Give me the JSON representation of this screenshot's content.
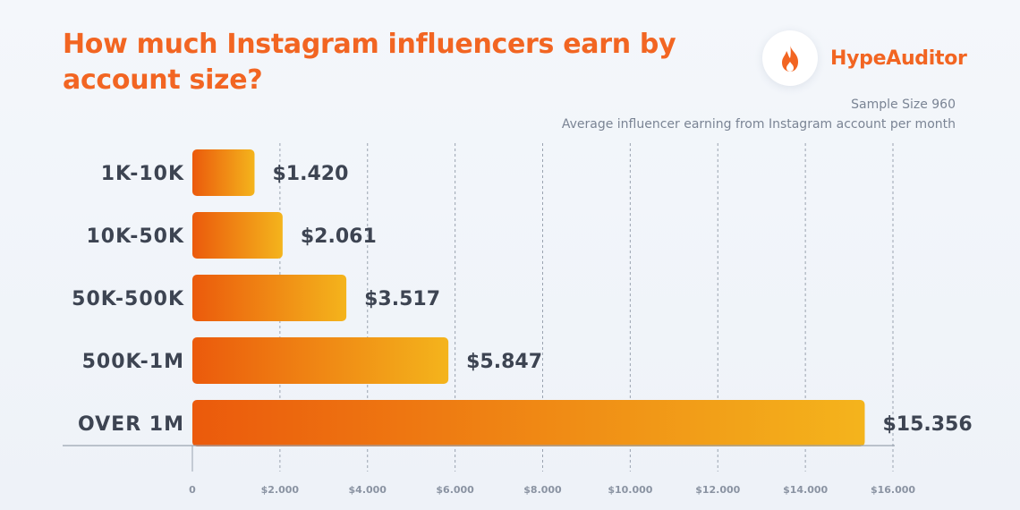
{
  "title": "How much Instagram influencers earn by account size?",
  "brand": {
    "name": "HypeAuditor",
    "icon": "flame-icon",
    "color": "#f26522"
  },
  "subtitle_1": "Sample Size 960",
  "subtitle_2": "Average influencer earning from Instagram account per month",
  "chart_data": {
    "type": "bar",
    "orientation": "horizontal",
    "categories": [
      "1K-10K",
      "10K-50K",
      "50K-500K",
      "500K-1M",
      "OVER 1M"
    ],
    "values": [
      1420,
      2061,
      3517,
      5847,
      15356
    ],
    "value_labels": [
      "$1.420",
      "$2.061",
      "$3.517",
      "$5.847",
      "$15.356"
    ],
    "x_ticks": [
      0,
      2000,
      4000,
      6000,
      8000,
      10000,
      12000,
      14000,
      16000
    ],
    "x_tick_labels": [
      "0",
      "$2.000",
      "$4.000",
      "$6.000",
      "$8.000",
      "$10.000",
      "$12.000",
      "$14.000",
      "$16.000"
    ],
    "xlim": [
      0,
      16000
    ],
    "grid": "vertical-dashed",
    "bar_gradient": [
      "#eb5a0c",
      "#f4b41c"
    ]
  }
}
